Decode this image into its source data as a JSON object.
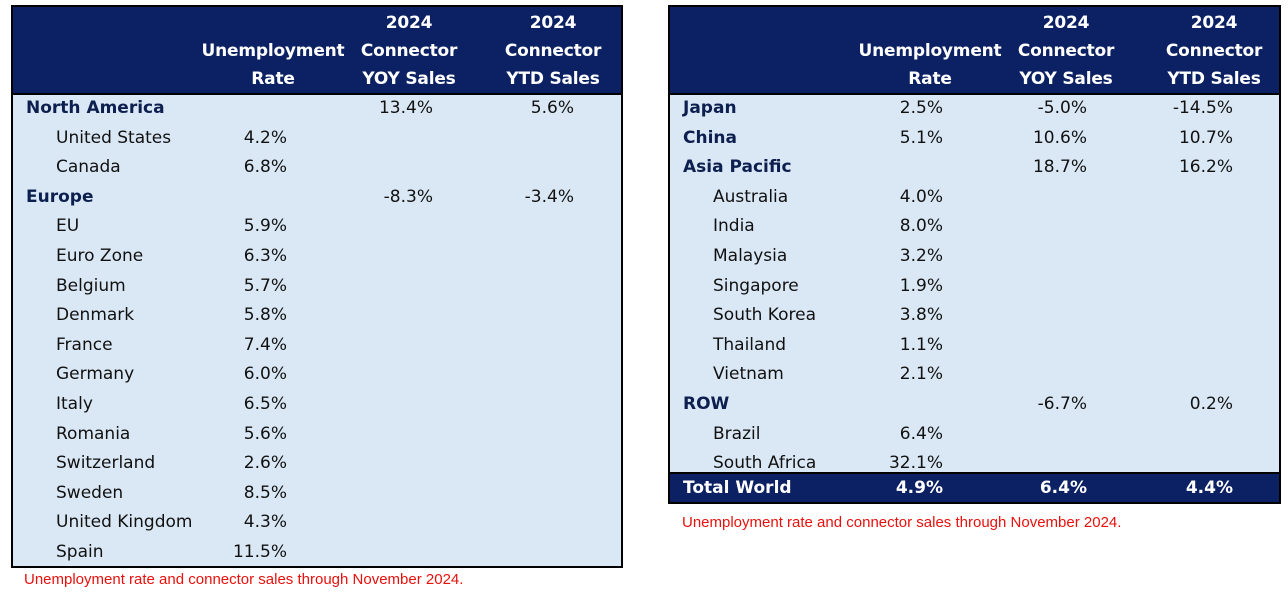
{
  "headers": {
    "unemployment": [
      "Unemployment",
      "Rate"
    ],
    "yoy": [
      "2024",
      "Connector",
      "YOY Sales"
    ],
    "ytd": [
      "2024",
      "Connector",
      "YTD Sales"
    ]
  },
  "left_table": {
    "rows": [
      {
        "label": "North America",
        "bold": true,
        "rate": "",
        "yoy": "13.4%",
        "ytd": "5.6%"
      },
      {
        "label": "United States",
        "bold": false,
        "rate": "4.2%",
        "yoy": "",
        "ytd": ""
      },
      {
        "label": "Canada",
        "bold": false,
        "rate": "6.8%",
        "yoy": "",
        "ytd": ""
      },
      {
        "label": "Europe",
        "bold": true,
        "rate": "",
        "yoy": "-8.3%",
        "ytd": "-3.4%"
      },
      {
        "label": "EU",
        "bold": false,
        "rate": "5.9%",
        "yoy": "",
        "ytd": ""
      },
      {
        "label": "Euro Zone",
        "bold": false,
        "rate": "6.3%",
        "yoy": "",
        "ytd": ""
      },
      {
        "label": "Belgium",
        "bold": false,
        "rate": "5.7%",
        "yoy": "",
        "ytd": ""
      },
      {
        "label": "Denmark",
        "bold": false,
        "rate": "5.8%",
        "yoy": "",
        "ytd": ""
      },
      {
        "label": "France",
        "bold": false,
        "rate": "7.4%",
        "yoy": "",
        "ytd": ""
      },
      {
        "label": "Germany",
        "bold": false,
        "rate": "6.0%",
        "yoy": "",
        "ytd": ""
      },
      {
        "label": "Italy",
        "bold": false,
        "rate": "6.5%",
        "yoy": "",
        "ytd": ""
      },
      {
        "label": "Romania",
        "bold": false,
        "rate": "5.6%",
        "yoy": "",
        "ytd": ""
      },
      {
        "label": "Switzerland",
        "bold": false,
        "rate": "2.6%",
        "yoy": "",
        "ytd": ""
      },
      {
        "label": "Sweden",
        "bold": false,
        "rate": "8.5%",
        "yoy": "",
        "ytd": ""
      },
      {
        "label": "United Kingdom",
        "bold": false,
        "rate": "4.3%",
        "yoy": "",
        "ytd": ""
      },
      {
        "label": "Spain",
        "bold": false,
        "rate": "11.5%",
        "yoy": "",
        "ytd": ""
      }
    ]
  },
  "right_table": {
    "rows": [
      {
        "label": "Japan",
        "bold": true,
        "rate": "2.5%",
        "yoy": "-5.0%",
        "ytd": "-14.5%"
      },
      {
        "label": "China",
        "bold": true,
        "rate": "5.1%",
        "yoy": "10.6%",
        "ytd": "10.7%"
      },
      {
        "label": "Asia Pacific",
        "bold": true,
        "rate": "",
        "yoy": "18.7%",
        "ytd": "16.2%"
      },
      {
        "label": "Australia",
        "bold": false,
        "rate": "4.0%",
        "yoy": "",
        "ytd": ""
      },
      {
        "label": "India",
        "bold": false,
        "rate": "8.0%",
        "yoy": "",
        "ytd": ""
      },
      {
        "label": "Malaysia",
        "bold": false,
        "rate": "3.2%",
        "yoy": "",
        "ytd": ""
      },
      {
        "label": "Singapore",
        "bold": false,
        "rate": "1.9%",
        "yoy": "",
        "ytd": ""
      },
      {
        "label": "South Korea",
        "bold": false,
        "rate": "3.8%",
        "yoy": "",
        "ytd": ""
      },
      {
        "label": "Thailand",
        "bold": false,
        "rate": "1.1%",
        "yoy": "",
        "ytd": ""
      },
      {
        "label": "Vietnam",
        "bold": false,
        "rate": "2.1%",
        "yoy": "",
        "ytd": ""
      },
      {
        "label": "ROW",
        "bold": true,
        "rate": "",
        "yoy": "-6.7%",
        "ytd": "0.2%"
      },
      {
        "label": "Brazil",
        "bold": false,
        "rate": "6.4%",
        "yoy": "",
        "ytd": ""
      },
      {
        "label": "South Africa",
        "bold": false,
        "rate": "32.1%",
        "yoy": "",
        "ytd": ""
      }
    ],
    "total": {
      "label": "Total World",
      "rate": "4.9%",
      "yoy": "6.4%",
      "ytd": "4.4%"
    }
  },
  "note": "Unemployment rate and connector sales through November 2024.",
  "colors": {
    "header_bg": "#0c2163",
    "body_bg": "#dae8f5",
    "note_text": "#e8110d"
  }
}
